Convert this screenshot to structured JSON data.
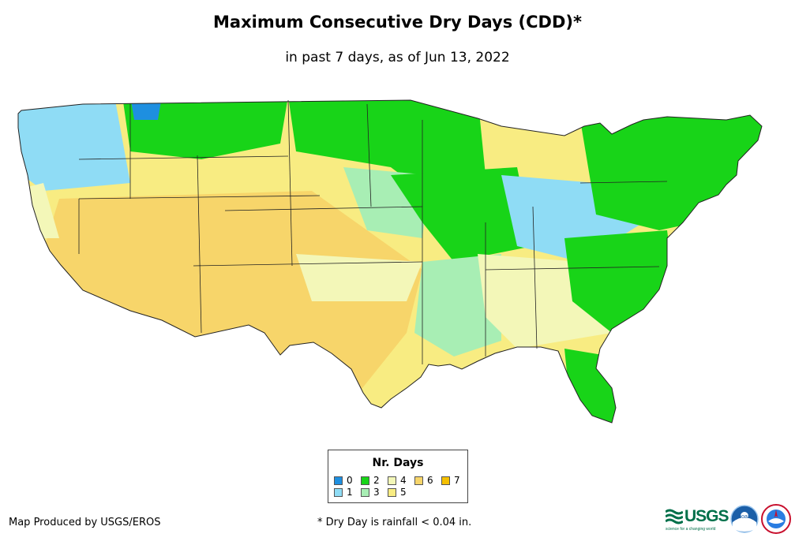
{
  "header": {
    "title": "Maximum Consecutive Dry Days (CDD)*",
    "subtitle": "in past 7 days, as of Jun 13, 2022"
  },
  "legend": {
    "title": "Nr. Days",
    "items": [
      {
        "label": "0",
        "color": "#1e8fe0"
      },
      {
        "label": "1",
        "color": "#8fdcf5"
      },
      {
        "label": "2",
        "color": "#18d418"
      },
      {
        "label": "3",
        "color": "#a8eeb4"
      },
      {
        "label": "4",
        "color": "#f3f7b8"
      },
      {
        "label": "5",
        "color": "#f8ec82"
      },
      {
        "label": "6",
        "color": "#f7d56a"
      },
      {
        "label": "7",
        "color": "#f5c000"
      }
    ]
  },
  "footer": {
    "credit": "Map Produced by USGS/EROS",
    "note": "* Dry Day is rainfall < 0.04 in."
  },
  "logos": {
    "usgs_text": "USGS",
    "usgs_tagline": "science for a changing world",
    "noaa_text": "noaa"
  }
}
